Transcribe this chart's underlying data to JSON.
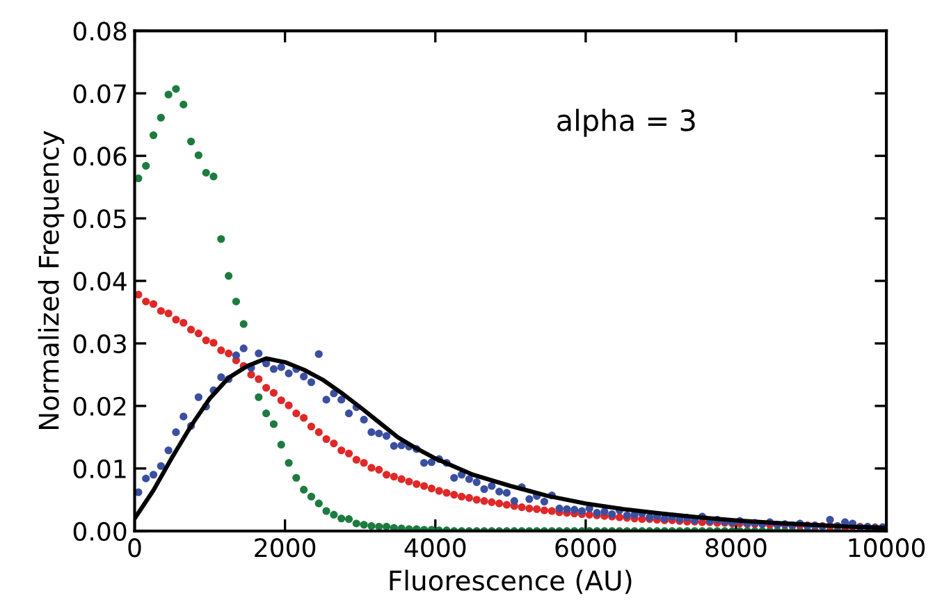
{
  "chart_data": {
    "type": "scatter",
    "xlabel": "Fluorescence (AU)",
    "ylabel": "Normalized Frequency",
    "annotations": [
      "alpha = 3"
    ],
    "xlim": [
      0,
      10000
    ],
    "xticks": [
      0,
      2000,
      4000,
      6000,
      8000,
      10000
    ],
    "ylim": [
      0,
      0.08
    ],
    "yticks": [
      {
        "value": 0,
        "label": "0.00"
      },
      {
        "value": 0.01,
        "label": "0.01"
      },
      {
        "value": 0.02,
        "label": "0.02"
      },
      {
        "value": 0.03,
        "label": "0.03"
      },
      {
        "value": 0.04,
        "label": "0.04"
      },
      {
        "value": 0.05,
        "label": "0.05"
      },
      {
        "value": 0.06,
        "label": "0.06"
      },
      {
        "value": 0.07,
        "label": "0.07"
      },
      {
        "value": 0.08,
        "label": "0.08"
      }
    ],
    "grid": false,
    "legend": false,
    "marker": "circle",
    "series": [
      {
        "color": "#1e7b3f",
        "x": [
          50,
          150,
          250,
          350,
          450,
          550,
          650,
          750,
          850,
          950,
          1050,
          1150,
          1250,
          1350,
          1450,
          1550,
          1650,
          1750,
          1850,
          1950,
          2050,
          2150,
          2250,
          2350,
          2450,
          2550,
          2650,
          2750,
          2850,
          2950,
          3050,
          3150,
          3250,
          3350,
          3450,
          3550,
          3650,
          3750,
          3850,
          3950,
          4050,
          4150,
          4250,
          4350,
          4450,
          4550,
          4650,
          4750,
          4850,
          4950,
          5050,
          5150,
          5250,
          5350,
          5450,
          5550,
          5650,
          5750,
          5850,
          5950,
          6050,
          6150,
          6250,
          6350,
          6450,
          6550,
          6650,
          6750,
          6850,
          6950,
          7050,
          7150,
          7250,
          7350,
          7450,
          7550,
          7650,
          7750,
          7850,
          7950,
          8050,
          8150,
          8250,
          8350,
          8450,
          8550,
          8650,
          8750,
          8850,
          8950,
          9050,
          9150,
          9250,
          9350,
          9450
        ],
        "values": [
          0.0564,
          0.0584,
          0.0633,
          0.0661,
          0.0698,
          0.0707,
          0.0682,
          0.0623,
          0.0601,
          0.0573,
          0.0567,
          0.0467,
          0.0408,
          0.0367,
          0.0331,
          null,
          0.0214,
          0.0188,
          0.0171,
          0.0138,
          0.0109,
          0.0085,
          0.0066,
          0.0055,
          0.0044,
          0.0032,
          0.0026,
          0.002,
          0.0019,
          0.0012,
          0.001,
          0.0008,
          0.0007,
          0.0007,
          0.0005,
          0.0004,
          0.0003,
          0.0003,
          0.0002,
          0.0002,
          0.0001,
          0.0001,
          0,
          0,
          0,
          0,
          0,
          0,
          0,
          0,
          0,
          0,
          0,
          0,
          0,
          0,
          0,
          0,
          0,
          0,
          0,
          0,
          0,
          0,
          0,
          0,
          0,
          0,
          0,
          0,
          0,
          0,
          0,
          0,
          0,
          0,
          0,
          0,
          0,
          0,
          0,
          0,
          0,
          0,
          0,
          0,
          0,
          0,
          0,
          0,
          0,
          null,
          0,
          0,
          0
        ]
      },
      {
        "color": "#e02828",
        "x": [
          50,
          150,
          250,
          350,
          450,
          550,
          650,
          750,
          850,
          950,
          1050,
          1150,
          1250,
          1350,
          1450,
          1550,
          1650,
          1750,
          1850,
          1950,
          2050,
          2150,
          2250,
          2350,
          2450,
          2550,
          2650,
          2750,
          2850,
          2950,
          3050,
          3150,
          3250,
          3350,
          3450,
          3550,
          3650,
          3750,
          3850,
          3950,
          4050,
          4150,
          4250,
          4350,
          4450,
          4550,
          4650,
          4750,
          4850,
          4950,
          5050,
          5150,
          5250,
          5350,
          5450,
          5550,
          5650,
          5750,
          5850,
          5950,
          6050,
          6150,
          6250,
          6350,
          6450,
          6550,
          6650,
          6750,
          6850,
          6950,
          7050,
          7150,
          7250,
          7350,
          7450,
          7550,
          7650,
          7750,
          7850,
          7950,
          8050,
          8150,
          8250,
          8350,
          8450,
          8550,
          8650,
          8750,
          8850,
          8950,
          9050,
          9150,
          9250,
          9350,
          9450,
          9550,
          9650,
          9750,
          9850,
          9950
        ],
        "values": [
          0.0378,
          0.0367,
          0.0363,
          0.0352,
          0.0348,
          0.0338,
          0.0333,
          0.0322,
          0.0316,
          0.0305,
          0.0301,
          0.0289,
          0.0284,
          0.0273,
          0.0264,
          0.025,
          0.0243,
          0.0229,
          0.0221,
          0.0209,
          0.0201,
          0.0188,
          0.0181,
          0.0167,
          0.0158,
          0.0147,
          0.014,
          0.0129,
          0.0124,
          0.0114,
          0.0109,
          0.0101,
          0.0098,
          0.009,
          0.0087,
          0.0083,
          0.0079,
          0.0075,
          0.0072,
          0.0068,
          0.0064,
          0.0061,
          0.0058,
          0.0055,
          0.0053,
          0.005,
          0.0048,
          0.0046,
          0.0044,
          0.0042,
          0.004,
          0.0038,
          0.0036,
          0.0035,
          0.0033,
          0.0032,
          0.003,
          0.0029,
          0.0028,
          0.0027,
          0.0026,
          0.0025,
          0.0024,
          0.0023,
          0.0022,
          0.0021,
          0.002,
          0.0019,
          0.0019,
          0.0018,
          0.0017,
          0.0017,
          0.0016,
          0.0015,
          0.0015,
          0.0014,
          0.0014,
          0.0013,
          0.0013,
          0.0012,
          0.0012,
          0.0011,
          0.0011,
          0.0011,
          0.001,
          0.001,
          0.001,
          0.0009,
          0.0009,
          0.0009,
          0.0008,
          0.0008,
          0.0008,
          0.0008,
          0.0007,
          0.0007,
          0.0007,
          null,
          0.0006,
          0.0006
        ]
      },
      {
        "color": "#3a4fa0",
        "x": [
          50,
          150,
          250,
          350,
          450,
          550,
          650,
          750,
          850,
          950,
          1050,
          1150,
          1250,
          1350,
          1450,
          1550,
          1650,
          1750,
          1850,
          1950,
          2050,
          2150,
          2250,
          2350,
          2450,
          2550,
          2650,
          2750,
          2850,
          2950,
          3050,
          3150,
          3250,
          3350,
          3450,
          3550,
          3650,
          3750,
          3850,
          3950,
          4050,
          4150,
          4250,
          4350,
          4450,
          4550,
          4650,
          4750,
          4850,
          4950,
          5050,
          5150,
          5250,
          5350,
          5450,
          5550,
          5650,
          5750,
          5850,
          5950,
          6050,
          6150,
          6250,
          6350,
          6450,
          6550,
          6650,
          6750,
          6850,
          6950,
          7050,
          7150,
          7250,
          7350,
          7450,
          7550,
          7650,
          7750,
          7850,
          7950,
          8050,
          8150,
          8250,
          8350,
          8450,
          8550,
          8650,
          8750,
          8850,
          8950,
          9050,
          9150,
          9250,
          9350,
          9450,
          9550,
          9650,
          9750,
          9850,
          9950
        ],
        "values": [
          0.0062,
          0.0084,
          0.009,
          0.0104,
          0.0129,
          0.0158,
          0.0183,
          0.0168,
          0.0214,
          0.0199,
          0.0225,
          0.0246,
          0.0243,
          0.0281,
          0.0292,
          0.0261,
          0.0284,
          0.0268,
          0.0259,
          0.0262,
          0.0252,
          0.0259,
          0.0247,
          0.0238,
          0.0283,
          0.021,
          0.022,
          0.021,
          0.0188,
          0.0198,
          0.0178,
          0.0158,
          0.0156,
          0.0152,
          0.0136,
          0.0137,
          0.0135,
          0.0131,
          0.0109,
          0.011,
          0.0115,
          0.0109,
          0.0085,
          0.009,
          0.0083,
          0.0078,
          0.0067,
          0.0072,
          0.0063,
          0.0061,
          0.0048,
          0.007,
          0.0051,
          0.0056,
          0.0047,
          0.0057,
          0.0036,
          0.0035,
          0.0034,
          0.0032,
          0.0036,
          0.0029,
          0.0031,
          0.0027,
          0.0033,
          0.0025,
          0.0026,
          0.0028,
          0.0022,
          0.0024,
          0.002,
          0.0023,
          0.0019,
          0.0021,
          0.0017,
          0.0023,
          0.0016,
          0.0018,
          0.0015,
          0.0014,
          0.0016,
          0.0012,
          0.0013,
          0.0011,
          0.0014,
          0.001,
          0.0011,
          0.0009,
          0.0012,
          0.0008,
          0.0009,
          0.0007,
          0.0018,
          0.0008,
          0.0014,
          0.0012,
          0.0006,
          0.0007,
          0.0005,
          0.0006
        ]
      },
      {
        "type": "line",
        "color": "#000000",
        "marker": "none",
        "line_style": "solid",
        "x": [
          0,
          250,
          500,
          750,
          1000,
          1250,
          1500,
          1750,
          2000,
          2250,
          2500,
          2750,
          3000,
          3250,
          3500,
          3750,
          4000,
          4500,
          5000,
          5500,
          6000,
          6500,
          7000,
          7500,
          8000,
          8500,
          9000,
          9500,
          10000
        ],
        "values": [
          0.002,
          0.0065,
          0.0118,
          0.0168,
          0.0212,
          0.0245,
          0.0264,
          0.0276,
          0.027,
          0.0258,
          0.0242,
          0.0221,
          0.0198,
          0.0174,
          0.015,
          0.0132,
          0.0116,
          0.009,
          0.0072,
          0.0056,
          0.0044,
          0.0035,
          0.0028,
          0.0022,
          0.0017,
          0.0013,
          0.001,
          0.0007,
          0.0005
        ]
      }
    ]
  }
}
